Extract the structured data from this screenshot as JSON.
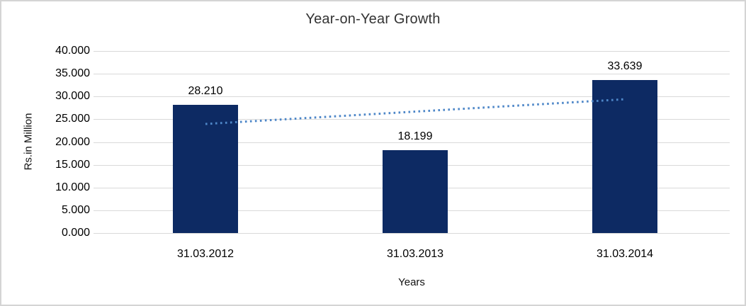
{
  "chart_data": {
    "type": "bar",
    "title": "Year-on-Year Growth",
    "xlabel": "Years",
    "ylabel": "Rs.in Million",
    "categories": [
      "31.03.2012",
      "31.03.2013",
      "31.03.2014"
    ],
    "values": [
      28.21,
      18.199,
      33.639
    ],
    "data_labels": [
      "28.210",
      "18.199",
      "33.639"
    ],
    "ylim": [
      0,
      40
    ],
    "ytick_step": 5,
    "ytick_labels": [
      "40.000",
      "35.000",
      "30.000",
      "25.000",
      "20.000",
      "15.000",
      "10.000",
      "5.000",
      "0.000"
    ],
    "grid": true,
    "legend": "none",
    "bar_color": "#0D2A63",
    "gridline_color": "#D9D9D9",
    "frame_border_color": "#D4D4D4",
    "text_color": "#000000",
    "trendline": {
      "type": "linear",
      "style": "dotted",
      "color": "#4E87C8",
      "start_value": 23.968,
      "end_value": 29.397
    }
  }
}
